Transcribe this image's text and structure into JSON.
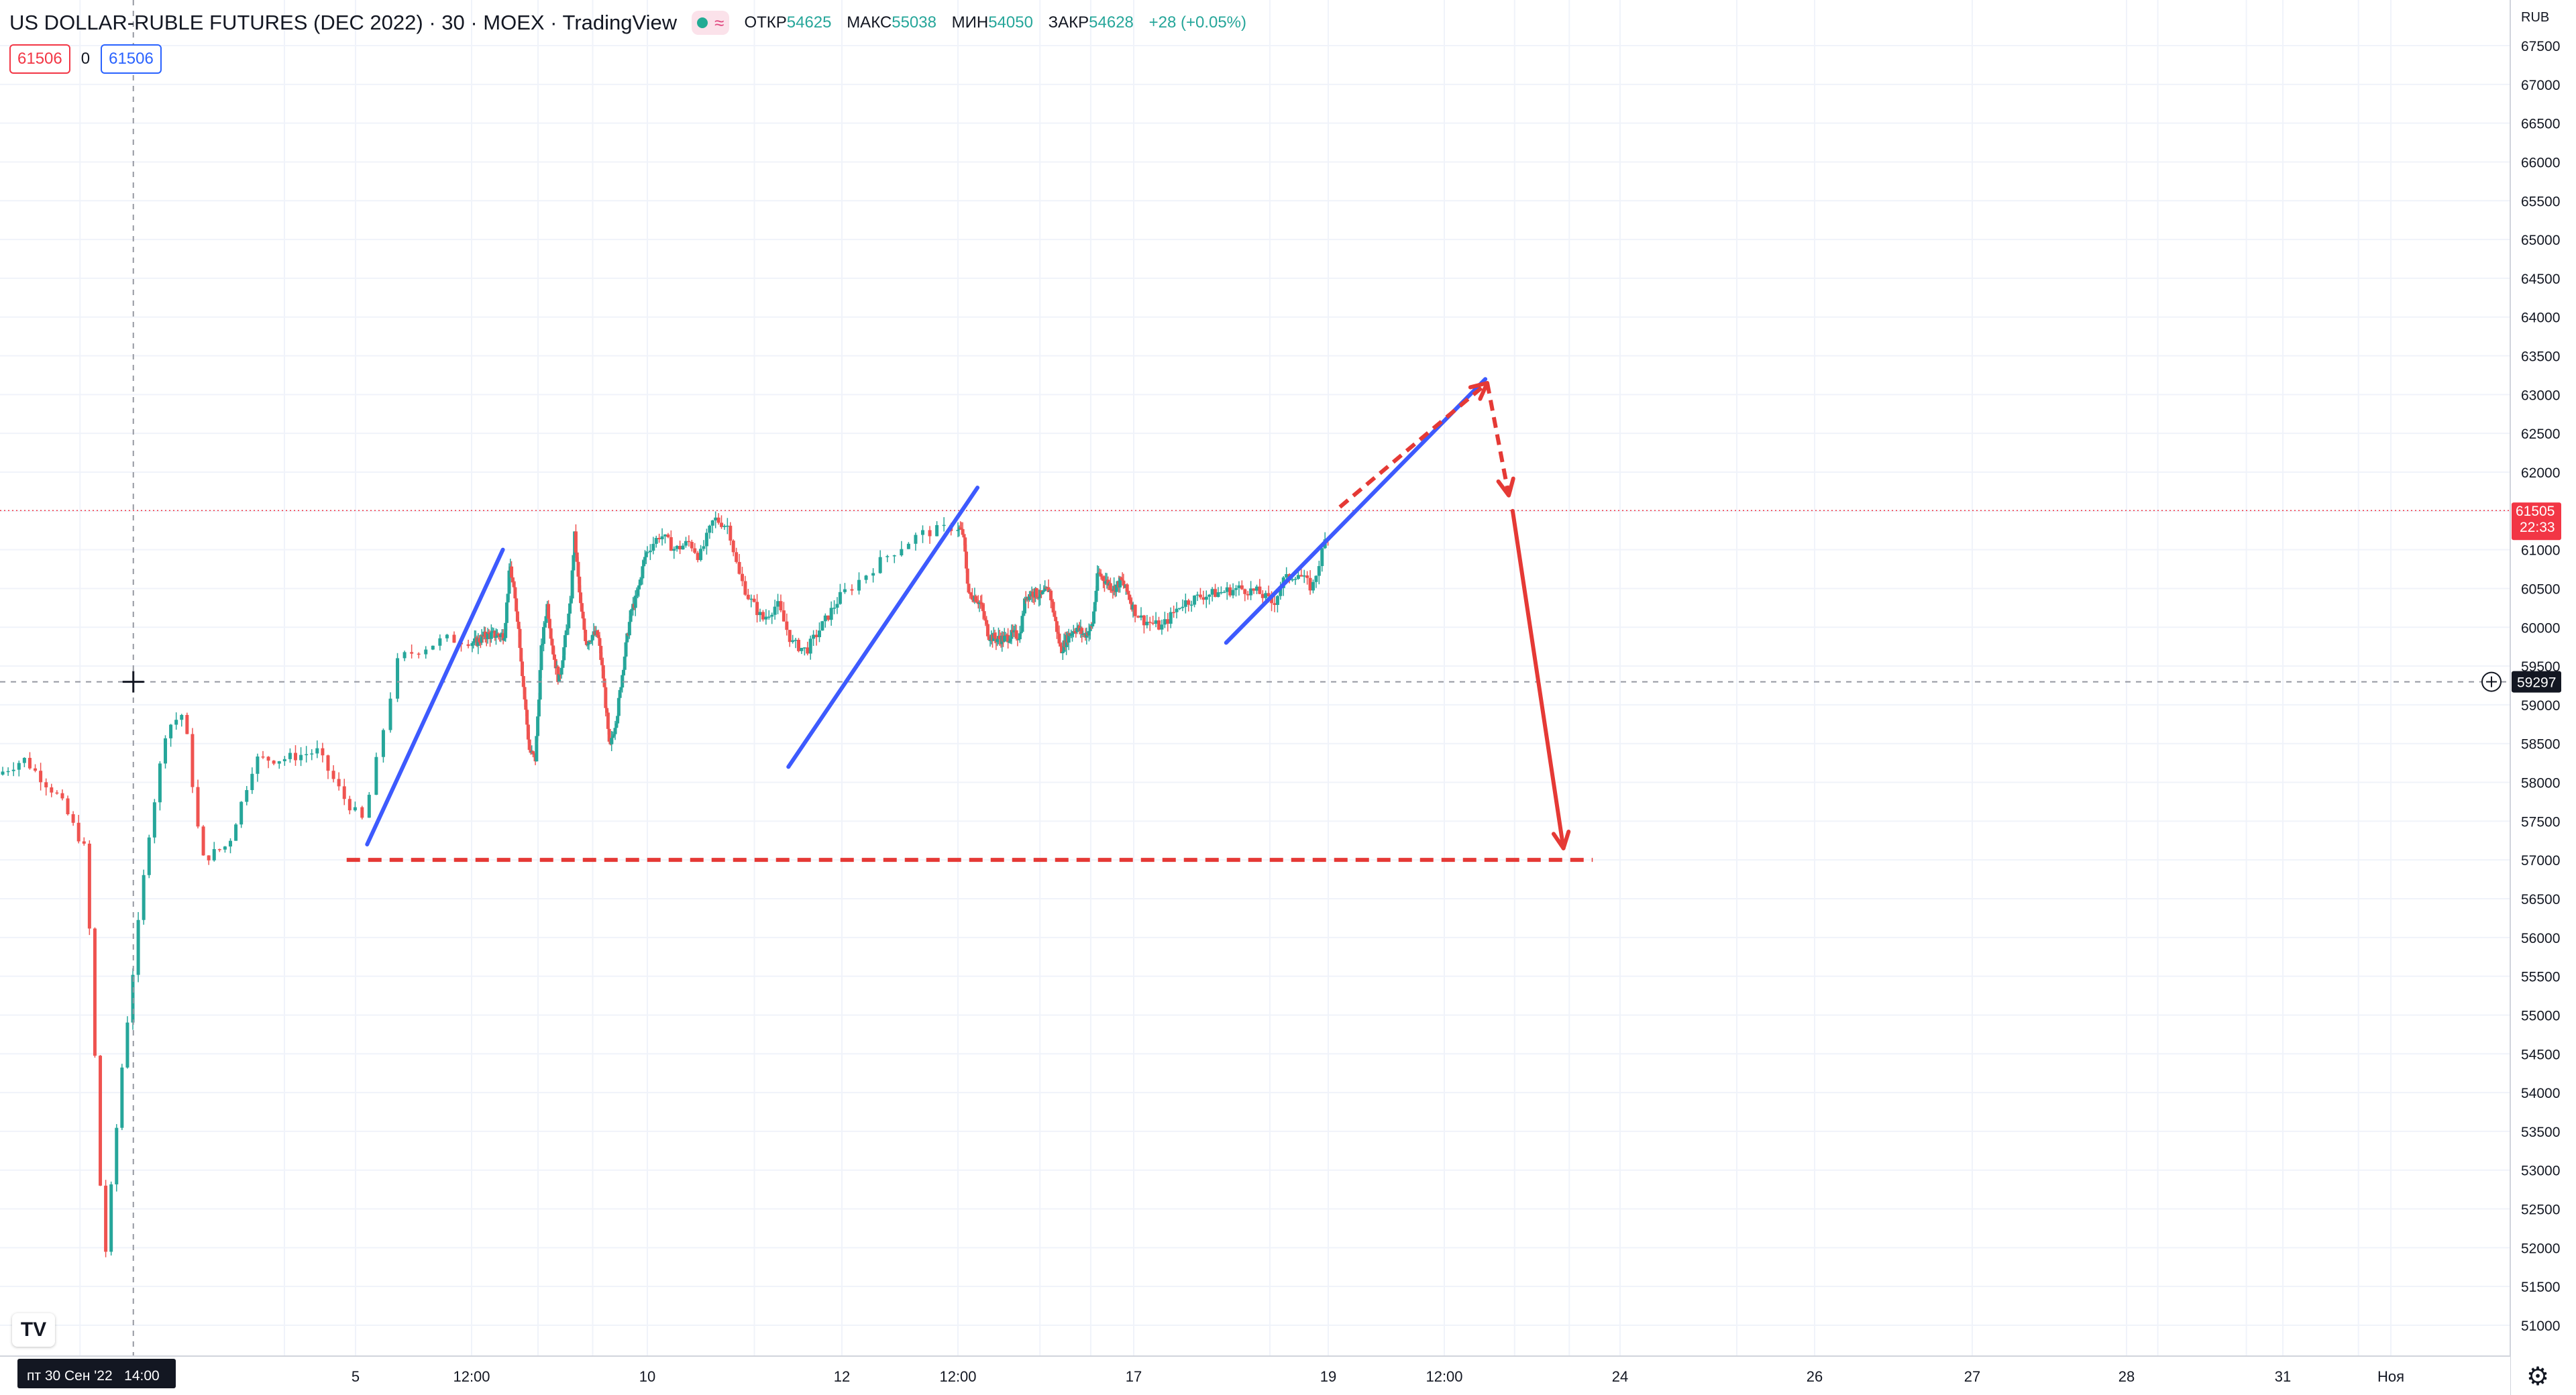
{
  "header": {
    "symbol": "US DOLLAR-RUBLE FUTURES (DEC 2022) · 30 · MOEX · TradingView",
    "live_icon": "green-dot-icon",
    "wave_icon": "wave-icon",
    "open_label": "ОТКР",
    "open_value": "54625",
    "high_label": "МАКС",
    "high_value": "55038",
    "low_label": "МИН",
    "low_value": "54050",
    "close_label": "ЗАКР",
    "close_value": "54628",
    "change": "+28 (+0.05%)"
  },
  "order_badges": {
    "sell": "61506",
    "spread": "0",
    "buy": "61506"
  },
  "price_axis": {
    "currency": "RUB",
    "last_price": "61505",
    "countdown": "22:33",
    "crosshair_price": "59297"
  },
  "time_axis": {
    "crosshair_label": "пт 30 Сен '22   14:00"
  },
  "colors": {
    "up": "#26a69a",
    "down": "#ef5350",
    "trend": "#3d5afe",
    "projection": "#e53935",
    "last_price": "#f23645"
  },
  "chart_data": {
    "type": "candlestick",
    "title": "US DOLLAR-RUBLE FUTURES (DEC 2022)",
    "timeframe": "30",
    "exchange": "MOEX",
    "y_unit": "RUB",
    "ylim": [
      50750,
      67850
    ],
    "y_ticks": [
      51000,
      51500,
      52000,
      52500,
      53000,
      53500,
      54000,
      54500,
      55000,
      55500,
      56000,
      56500,
      57000,
      57500,
      58000,
      58500,
      59000,
      59500,
      60000,
      60500,
      61000,
      61500,
      62000,
      62500,
      63000,
      63500,
      64000,
      64500,
      65000,
      65500,
      66000,
      66500,
      67000,
      67500
    ],
    "x_ticks": [
      {
        "label": "5",
        "day": 5
      },
      {
        "label": "12:00",
        "day": 5.5
      },
      {
        "label": "10",
        "day": 10
      },
      {
        "label": "12",
        "day": 12
      },
      {
        "label": "12:00",
        "day": 12.5
      },
      {
        "label": "17",
        "day": 17
      },
      {
        "label": "19",
        "day": 19
      },
      {
        "label": "12:00",
        "day": 19.5
      },
      {
        "label": "24",
        "day": 24
      },
      {
        "label": "26",
        "day": 26
      },
      {
        "label": "27",
        "day": 27
      },
      {
        "label": "28",
        "day": 28
      },
      {
        "label": "31",
        "day": 31
      },
      {
        "label": "Ноя",
        "day": 32
      }
    ],
    "price_path": [
      {
        "day": 3.0,
        "price": 58100
      },
      {
        "day": 3.15,
        "price": 58300
      },
      {
        "day": 3.35,
        "price": 57800
      },
      {
        "day": 3.5,
        "price": 57100
      },
      {
        "day": 3.6,
        "price": 51700
      },
      {
        "day": 3.7,
        "price": 54300
      },
      {
        "day": 3.85,
        "price": 57300
      },
      {
        "day": 3.95,
        "price": 58700
      },
      {
        "day": 4.05,
        "price": 58900
      },
      {
        "day": 4.15,
        "price": 57000
      },
      {
        "day": 4.3,
        "price": 57200
      },
      {
        "day": 4.45,
        "price": 58300
      },
      {
        "day": 4.6,
        "price": 58300
      },
      {
        "day": 4.8,
        "price": 58400
      },
      {
        "day": 4.95,
        "price": 57800
      },
      {
        "day": 5.05,
        "price": 57500
      },
      {
        "day": 5.2,
        "price": 59600
      },
      {
        "day": 5.4,
        "price": 59850
      },
      {
        "day": 5.6,
        "price": 59800
      },
      {
        "day": 5.9,
        "price": 59900
      },
      {
        "day": 6.1,
        "price": 59900
      },
      {
        "day": 6.35,
        "price": 59900
      },
      {
        "day": 6.5,
        "price": 60800
      },
      {
        "day": 6.7,
        "price": 60100
      },
      {
        "day": 6.85,
        "price": 59200
      },
      {
        "day": 7.0,
        "price": 58400
      },
      {
        "day": 7.15,
        "price": 58300
      },
      {
        "day": 7.3,
        "price": 59700
      },
      {
        "day": 7.45,
        "price": 60300
      },
      {
        "day": 7.6,
        "price": 59700
      },
      {
        "day": 7.75,
        "price": 59300
      },
      {
        "day": 7.9,
        "price": 59800
      },
      {
        "day": 8.05,
        "price": 60300
      },
      {
        "day": 8.15,
        "price": 61200
      },
      {
        "day": 8.3,
        "price": 60300
      },
      {
        "day": 8.45,
        "price": 59800
      },
      {
        "day": 8.6,
        "price": 59900
      },
      {
        "day": 8.75,
        "price": 59900
      },
      {
        "day": 8.9,
        "price": 59300
      },
      {
        "day": 9.05,
        "price": 58400
      },
      {
        "day": 9.25,
        "price": 58900
      },
      {
        "day": 9.45,
        "price": 59700
      },
      {
        "day": 9.6,
        "price": 60200
      },
      {
        "day": 9.75,
        "price": 60400
      },
      {
        "day": 9.95,
        "price": 60900
      },
      {
        "day": 10.15,
        "price": 61200
      },
      {
        "day": 10.3,
        "price": 61000
      },
      {
        "day": 10.45,
        "price": 61100
      },
      {
        "day": 10.55,
        "price": 60900
      },
      {
        "day": 10.7,
        "price": 61400
      },
      {
        "day": 10.85,
        "price": 61300
      },
      {
        "day": 10.95,
        "price": 60700
      },
      {
        "day": 11.05,
        "price": 60400
      },
      {
        "day": 11.2,
        "price": 60100
      },
      {
        "day": 11.35,
        "price": 60300
      },
      {
        "day": 11.5,
        "price": 59800
      },
      {
        "day": 11.65,
        "price": 59700
      },
      {
        "day": 11.8,
        "price": 60000
      },
      {
        "day": 11.95,
        "price": 60300
      },
      {
        "day": 12.05,
        "price": 60500
      },
      {
        "day": 12.2,
        "price": 60900
      },
      {
        "day": 12.35,
        "price": 61200
      },
      {
        "day": 12.5,
        "price": 61300
      },
      {
        "day": 12.65,
        "price": 61200
      },
      {
        "day": 12.8,
        "price": 60400
      },
      {
        "day": 12.95,
        "price": 60400
      },
      {
        "day": 13.1,
        "price": 60300
      },
      {
        "day": 13.3,
        "price": 59900
      },
      {
        "day": 13.5,
        "price": 59850
      },
      {
        "day": 13.7,
        "price": 59850
      },
      {
        "day": 13.9,
        "price": 59900
      },
      {
        "day": 14.1,
        "price": 59900
      },
      {
        "day": 14.25,
        "price": 60400
      },
      {
        "day": 14.45,
        "price": 60450
      },
      {
        "day": 14.65,
        "price": 60400
      },
      {
        "day": 14.85,
        "price": 60500
      },
      {
        "day": 15.0,
        "price": 60100
      },
      {
        "day": 15.15,
        "price": 59700
      },
      {
        "day": 15.35,
        "price": 59900
      },
      {
        "day": 15.55,
        "price": 60000
      },
      {
        "day": 15.75,
        "price": 59900
      },
      {
        "day": 15.95,
        "price": 60000
      },
      {
        "day": 16.1,
        "price": 60700
      },
      {
        "day": 16.3,
        "price": 60600
      },
      {
        "day": 16.5,
        "price": 60500
      },
      {
        "day": 16.7,
        "price": 60600
      },
      {
        "day": 16.9,
        "price": 60400
      },
      {
        "day": 17.1,
        "price": 60100
      },
      {
        "day": 17.3,
        "price": 60000
      },
      {
        "day": 17.5,
        "price": 60300
      },
      {
        "day": 17.7,
        "price": 60400
      },
      {
        "day": 17.9,
        "price": 60450
      },
      {
        "day": 18.1,
        "price": 60500
      },
      {
        "day": 18.3,
        "price": 60450
      },
      {
        "day": 18.45,
        "price": 60300
      },
      {
        "day": 18.55,
        "price": 60600
      },
      {
        "day": 18.7,
        "price": 60700
      },
      {
        "day": 18.85,
        "price": 60500
      },
      {
        "day": 19.0,
        "price": 61200
      }
    ],
    "annotations": {
      "support_level": 57000,
      "last_price_line": 61505,
      "crosshair_level": 59297,
      "crosshair_day": 3.75,
      "trend_lines": [
        {
          "from": {
            "day": 5.05,
            "price": 57200
          },
          "to": {
            "day": 6.3,
            "price": 61000
          }
        },
        {
          "from": {
            "day": 11.45,
            "price": 58200
          },
          "to": {
            "day": 13.0,
            "price": 61800
          }
        },
        {
          "from": {
            "day": 17.95,
            "price": 59800
          },
          "to": {
            "day": 20.55,
            "price": 63200
          }
        }
      ],
      "projection_dashed": [
        {
          "day": 19.05,
          "price": 61550
        },
        {
          "day": 20.6,
          "price": 63150
        },
        {
          "day": 21.15,
          "price": 61700
        }
      ],
      "projection_solid": [
        {
          "day": 21.25,
          "price": 61500
        },
        {
          "day": 22.55,
          "price": 57150
        }
      ],
      "support_from_day": 4.95,
      "support_to_day": 23.3
    }
  }
}
